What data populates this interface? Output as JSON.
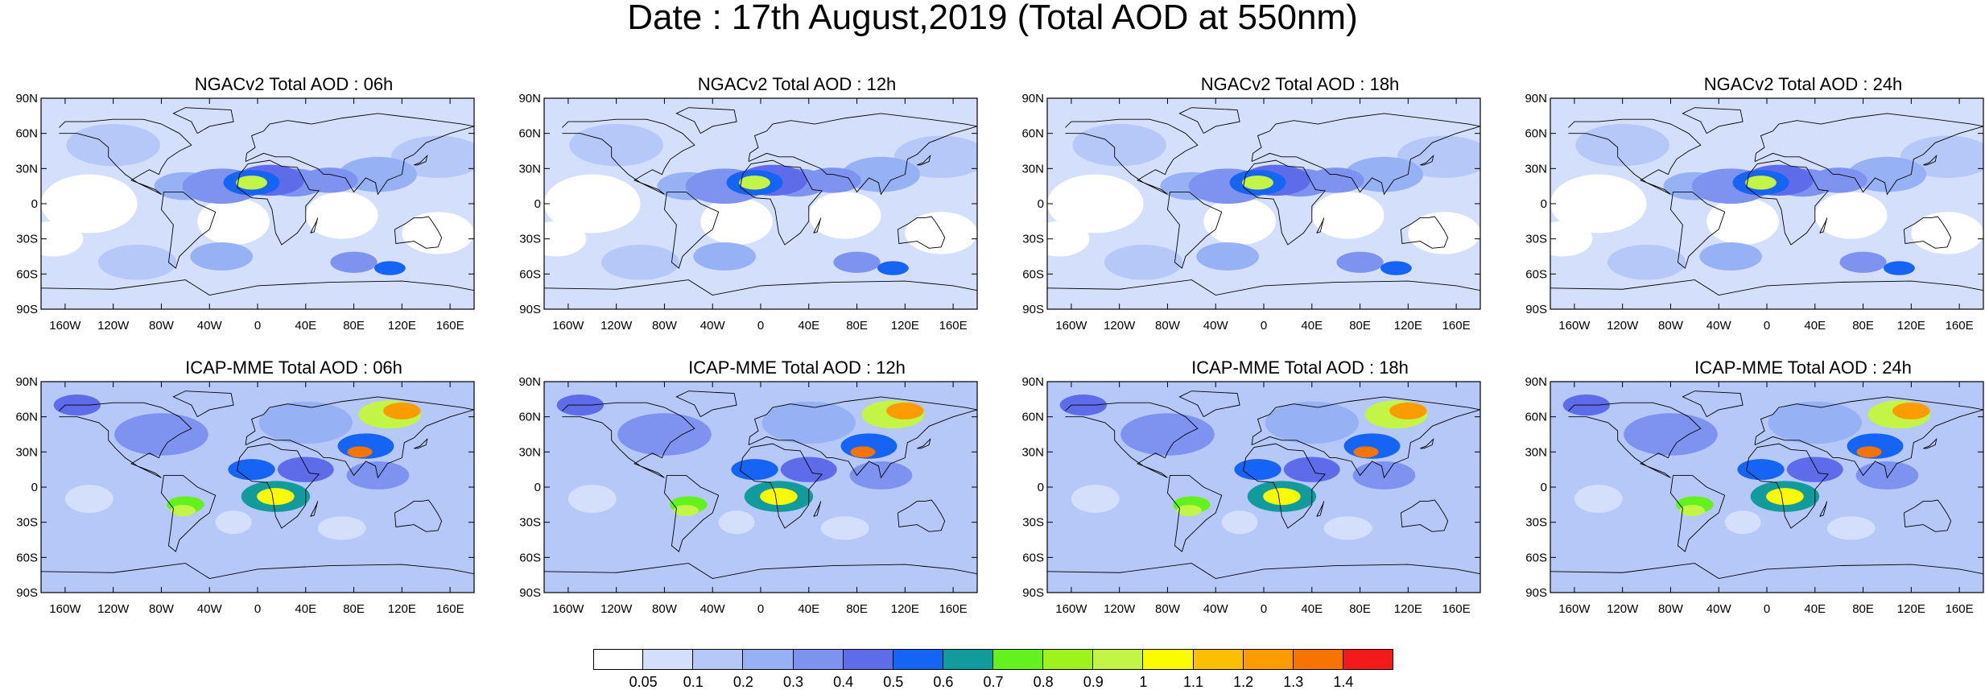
{
  "title": "Date : 17th August,2019 (Total AOD at 550nm)",
  "panels": [
    {
      "id": "ngac-06",
      "title": "NGACv2 Total AOD : 06h",
      "model": "ngac"
    },
    {
      "id": "ngac-12",
      "title": "NGACv2 Total AOD : 12h",
      "model": "ngac"
    },
    {
      "id": "ngac-18",
      "title": "NGACv2 Total AOD : 18h",
      "model": "ngac"
    },
    {
      "id": "ngac-24",
      "title": "NGACv2 Total AOD : 24h",
      "model": "ngac"
    },
    {
      "id": "icap-06",
      "title": "ICAP-MME Total AOD : 06h",
      "model": "icap"
    },
    {
      "id": "icap-12",
      "title": "ICAP-MME Total AOD : 12h",
      "model": "icap"
    },
    {
      "id": "icap-18",
      "title": "ICAP-MME Total AOD : 18h",
      "model": "icap"
    },
    {
      "id": "icap-24",
      "title": "ICAP-MME Total AOD : 24h",
      "model": "icap"
    }
  ],
  "axes": {
    "lat_labels": [
      "90N",
      "60N",
      "30N",
      "0",
      "30S",
      "60S",
      "90S"
    ],
    "lon_labels": [
      "160W",
      "120W",
      "80W",
      "40W",
      "0",
      "40E",
      "80E",
      "120E",
      "160E"
    ]
  },
  "colorbar": {
    "colors": [
      "#ffffff",
      "#d4dffb",
      "#b5c8f8",
      "#97b1f5",
      "#7e92f0",
      "#5e6cea",
      "#1564f3",
      "#119b9c",
      "#63f21d",
      "#9ef31d",
      "#c2f545",
      "#fcfc00",
      "#fcc000",
      "#fc9c00",
      "#f87400",
      "#f41a1a"
    ],
    "labels": [
      "0.05",
      "0.1",
      "0.2",
      "0.3",
      "0.4",
      "0.5",
      "0.6",
      "0.7",
      "0.8",
      "0.9",
      "1",
      "1.1",
      "1.2",
      "1.3",
      "1.4"
    ]
  }
}
